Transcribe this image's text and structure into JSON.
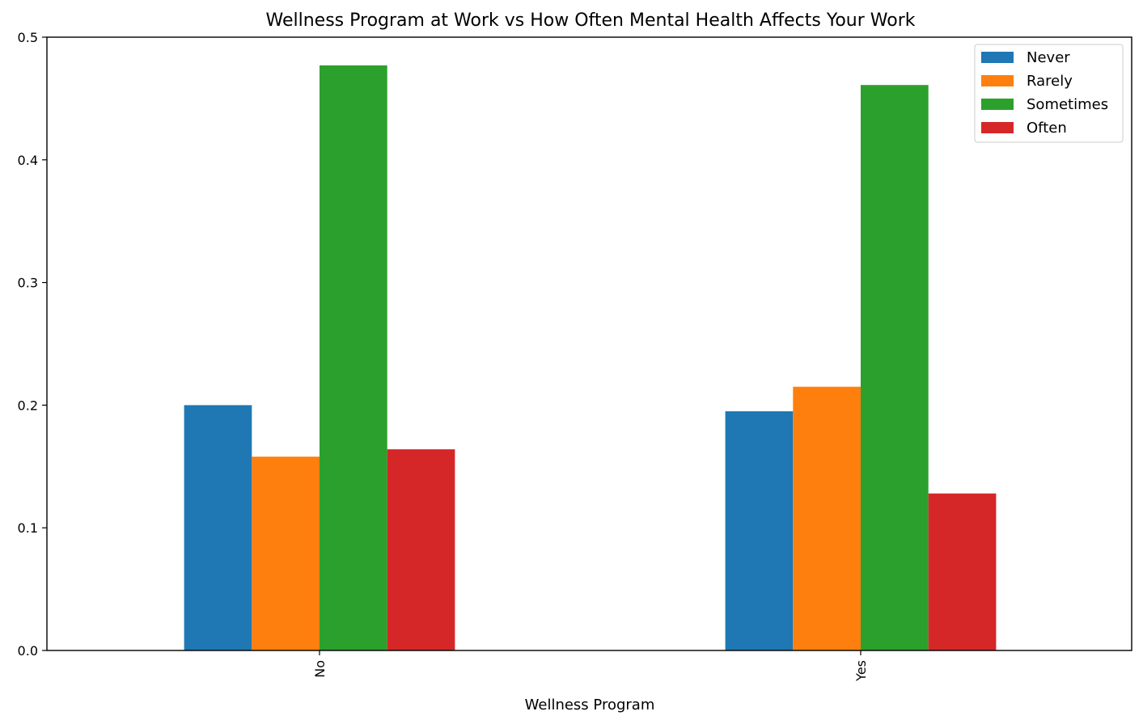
{
  "chart_data": {
    "type": "bar",
    "title": "Wellness Program at Work vs How Often Mental Health Affects Your Work",
    "xlabel": "Wellness Program",
    "ylabel": "",
    "categories": [
      "No",
      "Yes"
    ],
    "ylim": [
      0,
      0.5
    ],
    "yticks": [
      "0.0",
      "0.1",
      "0.2",
      "0.3",
      "0.4",
      "0.5"
    ],
    "grid": false,
    "legend_position": "top-right",
    "series": [
      {
        "name": "Never",
        "color": "#1f77b4",
        "values": [
          0.2,
          0.195
        ]
      },
      {
        "name": "Rarely",
        "color": "#ff7f0e",
        "values": [
          0.158,
          0.215
        ]
      },
      {
        "name": "Sometimes",
        "color": "#2ca02c",
        "values": [
          0.477,
          0.461
        ]
      },
      {
        "name": "Often",
        "color": "#d62728",
        "values": [
          0.164,
          0.128
        ]
      }
    ]
  }
}
